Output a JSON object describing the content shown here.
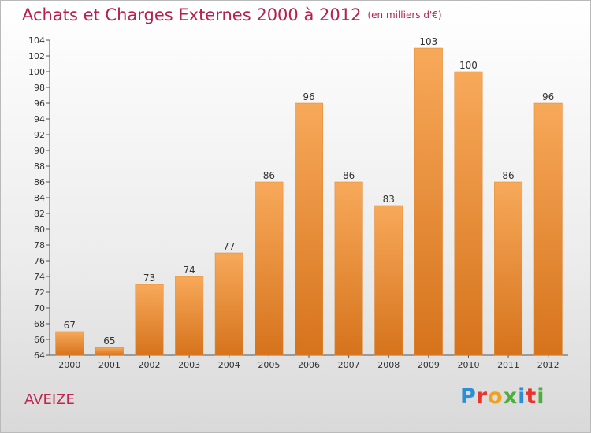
{
  "header": {
    "title": "Achats et Charges Externes 2000 à 2012",
    "unit": "(en milliers d'€)"
  },
  "footer": {
    "place": "AVEIZE",
    "logo": {
      "letters": [
        "P",
        "r",
        "o",
        "x",
        "i",
        "t",
        "i"
      ],
      "colors": [
        "#2a8fd6",
        "#e8342c",
        "#f0a21c",
        "#4caf3c",
        "#2a8fd6",
        "#e8342c",
        "#4caf3c"
      ]
    }
  },
  "chart_data": {
    "type": "bar",
    "title": "Achats et Charges Externes 2000 à 2012",
    "subtitle": "(en milliers d'€)",
    "categories": [
      "2000",
      "2001",
      "2002",
      "2003",
      "2004",
      "2005",
      "2006",
      "2007",
      "2008",
      "2009",
      "2010",
      "2011",
      "2012"
    ],
    "values": [
      67,
      65,
      73,
      74,
      77,
      86,
      96,
      86,
      83,
      103,
      100,
      86,
      96
    ],
    "ylim": [
      64,
      104
    ],
    "ytick_step": 2,
    "grid": false,
    "bar_color": "#ef8f30",
    "bar_color_top": "#f7a95a",
    "bar_color_bottom": "#d6731c"
  }
}
